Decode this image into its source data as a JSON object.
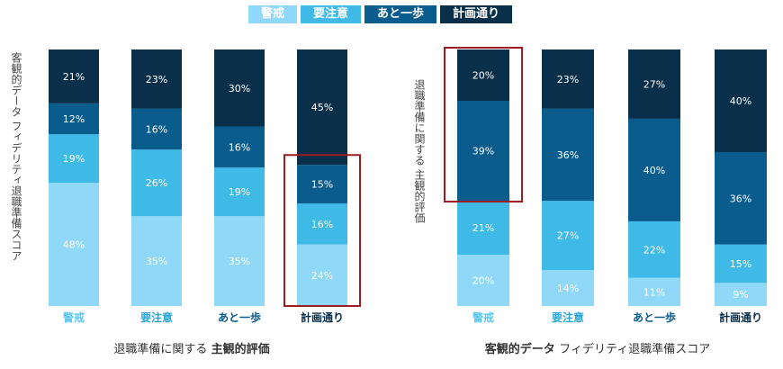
{
  "legend": [
    {
      "label": "警戒",
      "color": "#8fd8f7"
    },
    {
      "label": "要注意",
      "color": "#3fb9e6"
    },
    {
      "label": "あと一歩",
      "color": "#0a5c8c"
    },
    {
      "label": "計画通り",
      "color": "#0a2f4a"
    }
  ],
  "chart_data": [
    {
      "type": "bar",
      "stacked": true,
      "categories": [
        "警戒",
        "要注意",
        "あと一歩",
        "計画通り"
      ],
      "xlabel_main": "退職準備に関する",
      "xlabel_bold": "主観的評価",
      "ylabel": "客観的データ フィデリティ退職準備スコア",
      "ylim": [
        0,
        100
      ],
      "series": [
        {
          "name": "警戒",
          "color": "#8fd8f7",
          "values": [
            48,
            35,
            35,
            24
          ]
        },
        {
          "name": "要注意",
          "color": "#3fb9e6",
          "values": [
            19,
            26,
            19,
            16
          ]
        },
        {
          "name": "あと一歩",
          "color": "#0a5c8c",
          "values": [
            12,
            16,
            16,
            15
          ]
        },
        {
          "name": "計画通り",
          "color": "#0a2f4a",
          "values": [
            21,
            23,
            30,
            45
          ]
        }
      ],
      "highlight_category": "計画通り"
    },
    {
      "type": "bar",
      "stacked": true,
      "categories": [
        "警戒",
        "要注意",
        "あと一歩",
        "計画通り"
      ],
      "xlabel_bold": "客観的データ",
      "xlabel_main": "フィデリティ退職準備スコア",
      "ylabel": "退職準備に関する 主観的評価",
      "ylim": [
        0,
        100
      ],
      "series": [
        {
          "name": "警戒",
          "color": "#8fd8f7",
          "values": [
            20,
            14,
            11,
            9
          ]
        },
        {
          "name": "要注意",
          "color": "#3fb9e6",
          "values": [
            21,
            27,
            22,
            15
          ]
        },
        {
          "name": "あと一歩",
          "color": "#0a5c8c",
          "values": [
            39,
            36,
            40,
            36
          ]
        },
        {
          "name": "計画通り",
          "color": "#0a2f4a",
          "values": [
            20,
            23,
            27,
            40
          ]
        }
      ],
      "highlight_category": "警戒"
    }
  ]
}
